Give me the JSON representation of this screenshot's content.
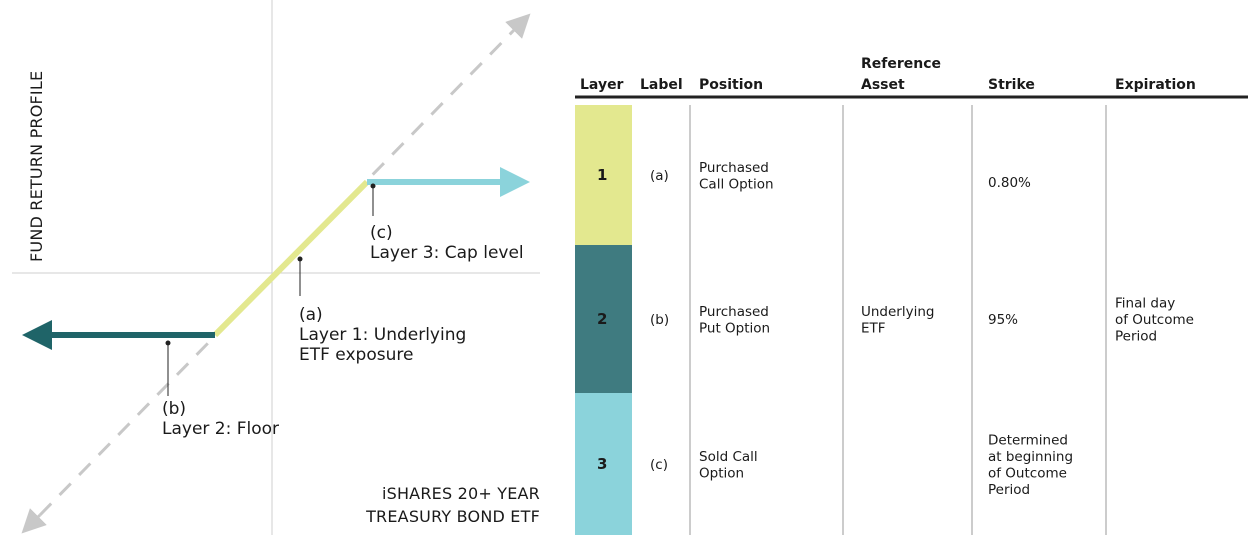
{
  "diagram": {
    "y_axis_label": "FUND RETURN PROFILE",
    "x_axis_label": [
      "iSHARES 20+ YEAR",
      "TREASURY BOND ETF"
    ],
    "annotations": [
      {
        "label": "(c)",
        "text": [
          "Layer 3: Cap level"
        ]
      },
      {
        "label": "(a)",
        "text": [
          "Layer 1: Underlying",
          "ETF exposure"
        ]
      },
      {
        "label": "(b)",
        "text": [
          "Layer 2: Floor"
        ]
      }
    ]
  },
  "table": {
    "headers": [
      [
        "Layer"
      ],
      [
        "Label"
      ],
      [
        "Position"
      ],
      [
        "Reference",
        "Asset"
      ],
      [
        "Strike"
      ],
      [
        "Expiration"
      ]
    ],
    "rows": [
      {
        "layer": "1",
        "label": "(a)",
        "position": [
          "Purchased",
          "Call Option"
        ],
        "strike": [
          "0.80%"
        ]
      },
      {
        "layer": "2",
        "label": "(b)",
        "position": [
          "Purchased",
          "Put Option"
        ],
        "strike": [
          "95%"
        ]
      },
      {
        "layer": "3",
        "label": "(c)",
        "position": [
          "Sold Call",
          "Option"
        ],
        "strike": [
          "Determined",
          "at beginning",
          "of Outcome",
          "Period"
        ]
      }
    ],
    "reference_asset": [
      "Underlying",
      "ETF"
    ],
    "expiration": [
      "Final day",
      "of Outcome",
      "Period"
    ]
  }
}
